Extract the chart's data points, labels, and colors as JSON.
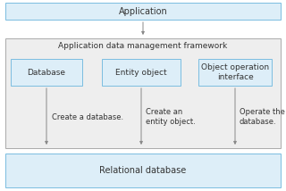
{
  "title": "Application",
  "framework_label": "Application data management framework",
  "boxes": [
    "Database",
    "Entity object",
    "Object operation\ninterface"
  ],
  "arrow_labels": [
    "Create a database.",
    "Create an\nentity object.",
    "Operate the\ndatabase."
  ],
  "bottom_label": "Relational database",
  "box_fill": "#ddeef8",
  "box_edge": "#7bbde0",
  "outer_fill": "#ddeef8",
  "outer_edge": "#7bbde0",
  "framework_fill": "#eeeeee",
  "framework_edge": "#aaaaaa",
  "arrow_color": "#888888",
  "text_color": "#333333",
  "font_size": 6.5
}
